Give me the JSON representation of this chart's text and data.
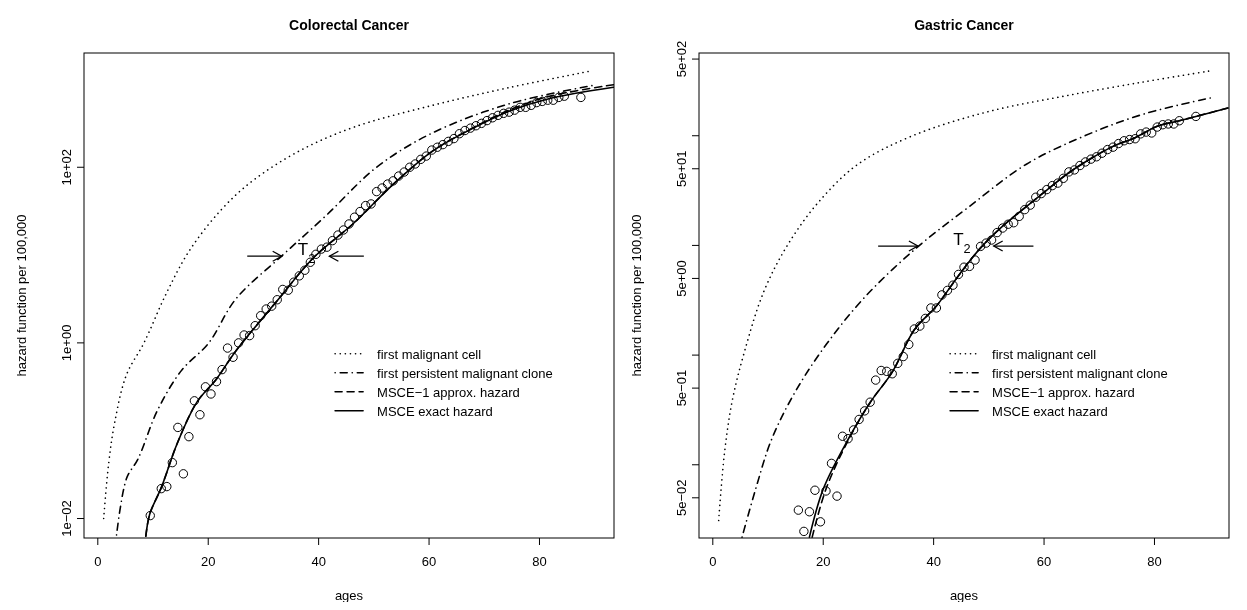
{
  "chart_data": [
    {
      "type": "line",
      "title": "Colorectal Cancer",
      "xlabel": "ages",
      "ylabel": "hazard function per 100,000",
      "log": "y",
      "legend": "right",
      "xlim": [
        -2.5,
        93.5
      ],
      "xticks": [
        0,
        20,
        40,
        60,
        80
      ],
      "ylim": [
        0.006,
        2000
      ],
      "yticks": [
        {
          "value": 0.01,
          "label": "1e−02"
        },
        {
          "value": 1,
          "label": "1e+00"
        },
        {
          "value": 100,
          "label": "1e+02"
        }
      ],
      "annotations": [
        "T$_{2}$"
      ],
      "series": [
        {
          "name": "first malignant cell",
          "line_style": "dotted",
          "color": "#000000",
          "x": [
            1.06,
            1.98,
            3.05,
            5.17,
            8.36,
            12.26,
            16.5,
            22.2,
            27.9,
            36.4,
            46.3,
            60.5,
            74.6,
            88.8
          ],
          "values": [
            0.01,
            0.043,
            0.123,
            0.43,
            1.0,
            3.5,
            11,
            32,
            69,
            152,
            285,
            505,
            810,
            1230
          ]
        },
        {
          "name": "first persistent malignant clone",
          "line_style": "dashdot",
          "color": "#000000",
          "x": [
            3.4,
            5.2,
            7.3,
            10.8,
            15.1,
            20.1,
            25.0,
            33.5,
            41.3,
            50.5,
            60.5,
            74.6,
            89.5
          ],
          "values": [
            0.0065,
            0.0285,
            0.048,
            0.17,
            0.48,
            1.0,
            3.16,
            10,
            28,
            100,
            244,
            530,
            850
          ]
        },
        {
          "name": "MSCE−1 approx. hazard",
          "line_style": "dashed",
          "color": "#000000",
          "x": [
            8.7,
            9.4,
            11.55,
            14.4,
            17.9,
            21.5,
            25.0,
            32.1,
            39.2,
            46.3,
            53.4,
            60.5,
            67.5,
            74.6,
            81.7,
            93.4
          ],
          "values": [
            0.0063,
            0.0112,
            0.0229,
            0.072,
            0.209,
            0.389,
            0.81,
            2.82,
            9.5,
            22.9,
            63,
            151,
            272,
            450,
            640,
            870
          ]
        },
        {
          "name": "MSCE exact hazard",
          "line_style": "solid",
          "color": "#000000",
          "x": [
            8.7,
            9.4,
            11.55,
            14.4,
            17.9,
            21.5,
            25.0,
            32.1,
            39.2,
            46.3,
            53.4,
            60.5,
            67.5,
            74.6,
            81.7,
            93.4
          ],
          "values": [
            0.0063,
            0.0112,
            0.0229,
            0.072,
            0.209,
            0.389,
            0.81,
            2.82,
            9.5,
            22.9,
            63,
            151,
            269,
            437,
            603,
            813
          ]
        },
        {
          "type": "scatter",
          "marker": "circle",
          "color": "#000000",
          "x": [
            9.5,
            11.5,
            12.5,
            13.5,
            14.5,
            15.5,
            16.5,
            17.5,
            18.5,
            19.5,
            20.5,
            21.5,
            22.5,
            23.5,
            24.5,
            25.5,
            26.5,
            27.5,
            28.5,
            29.5,
            30.5,
            31.5,
            32.5,
            33.5,
            34.5,
            35.5,
            36.5,
            37.5,
            38.5,
            39.5,
            40.5,
            41.5,
            42.5,
            43.5,
            44.5,
            45.5,
            46.5,
            47.5,
            48.5,
            49.5,
            50.5,
            51.5,
            52.5,
            53.5,
            54.5,
            55.5,
            56.5,
            57.5,
            58.5,
            59.5,
            60.5,
            61.5,
            62.5,
            63.5,
            64.5,
            65.5,
            66.5,
            67.5,
            68.5,
            69.5,
            70.5,
            71.5,
            72.5,
            73.5,
            74.5,
            75.5,
            76.5,
            77.5,
            78.5,
            79.5,
            80.5,
            81.5,
            82.5,
            83.5,
            84.5,
            87.5
          ],
          "values": [
            0.0108,
            0.0219,
            0.0231,
            0.0433,
            0.109,
            0.0323,
            0.0855,
            0.219,
            0.152,
            0.316,
            0.262,
            0.362,
            0.496,
            0.873,
            0.686,
            1.0,
            1.23,
            1.21,
            1.57,
            2.04,
            2.43,
            2.62,
            3.1,
            4.06,
            3.98,
            4.91,
            5.8,
            6.72,
            8.28,
            10.2,
            11.7,
            12.3,
            14.6,
            16.9,
            19.3,
            22.6,
            27.0,
            31.3,
            36.6,
            38.2,
            52.8,
            58.0,
            64.4,
            70.0,
            79.4,
            88.2,
            100,
            109,
            123,
            134,
            157,
            169,
            181,
            197,
            212,
            241,
            262,
            279,
            297,
            316,
            340,
            366,
            390,
            411,
            424,
            447,
            481,
            481,
            507,
            545,
            562,
            580,
            580,
            624,
            644,
            624
          ]
        }
      ]
    },
    {
      "type": "line",
      "title": "Gastric Cancer",
      "xlabel": "ages",
      "ylabel": "hazard function per 100,000",
      "log": "y",
      "legend": "right",
      "xlim": [
        -2.5,
        93.5
      ],
      "xticks": [
        0,
        20,
        40,
        60,
        80
      ],
      "ylim": [
        0.0215,
        568
      ],
      "yticks": [
        {
          "value": 0.05,
          "label": "5e−02"
        },
        {
          "value": 0.1,
          "label": null
        },
        {
          "value": 0.5,
          "label": "5e−01"
        },
        {
          "value": 1,
          "label": null
        },
        {
          "value": 5,
          "label": "5e+00"
        },
        {
          "value": 10,
          "label": null
        },
        {
          "value": 50,
          "label": "5e+01"
        },
        {
          "value": 100,
          "label": null
        },
        {
          "value": 500,
          "label": "5e+02"
        }
      ],
      "annotations": [
        "T$_{2}$"
      ],
      "series": [
        {
          "name": "first malignant cell",
          "line_style": "dotted",
          "color": "#000000",
          "x": [
            1.06,
            2.13,
            3.55,
            5.7,
            9.2,
            13.5,
            19.2,
            26.3,
            36.2,
            49.7,
            63.9,
            78.1,
            89.8
          ],
          "values": [
            0.031,
            0.13,
            0.39,
            1.06,
            3.76,
            10,
            25,
            55,
            100,
            165,
            231,
            310,
            388
          ]
        },
        {
          "name": "first persistent malignant clone",
          "line_style": "dashdot",
          "color": "#000000",
          "x": [
            5.3,
            7.8,
            10.6,
            14.9,
            20.6,
            27.7,
            36.9,
            46.1,
            56.8,
            67.4,
            78.1,
            90.1
          ],
          "values": [
            0.0219,
            0.061,
            0.168,
            0.46,
            1.26,
            3.45,
            9.5,
            21.9,
            55,
            100,
            158,
            221
          ]
        },
        {
          "name": "MSCE−1 approx. hazard",
          "line_style": "dashed",
          "color": "#000000",
          "x": [
            18.0,
            20.5,
            24.6,
            28.5,
            32.5,
            36.5,
            40.5,
            44.5,
            48.5,
            52.5,
            56.5,
            60.5,
            64.5,
            68.5,
            72.5,
            76.5,
            80.5,
            84.5,
            87.5,
            93.3
          ],
          "values": [
            0.0219,
            0.06,
            0.17,
            0.37,
            0.7,
            1.7,
            2.8,
            5.3,
            9.5,
            15,
            22,
            32,
            46,
            62,
            80,
            96,
            122,
            137,
            150,
            179
          ]
        },
        {
          "name": "MSCE exact hazard",
          "line_style": "solid",
          "color": "#000000",
          "x": [
            17.5,
            20.0,
            24.5,
            28.5,
            32.5,
            36.5,
            40.5,
            44.5,
            48.5,
            52.5,
            56.5,
            60.5,
            64.5,
            68.5,
            72.5,
            76.5,
            80.5,
            84.5,
            87.5,
            93.3
          ],
          "values": [
            0.0219,
            0.06,
            0.17,
            0.37,
            0.7,
            1.7,
            2.8,
            5.3,
            9.5,
            15,
            22,
            32,
            46,
            62,
            80,
            96,
            122,
            137,
            150,
            179
          ]
        },
        {
          "type": "scatter",
          "marker": "circle",
          "color": "#000000",
          "x": [
            15.5,
            16.5,
            17.5,
            18.5,
            19.5,
            20.5,
            21.5,
            22.5,
            23.5,
            24.5,
            25.5,
            26.5,
            27.5,
            28.5,
            29.5,
            30.5,
            31.5,
            32.5,
            33.5,
            34.5,
            35.5,
            36.5,
            37.5,
            38.5,
            39.5,
            40.5,
            41.5,
            42.5,
            43.5,
            44.5,
            45.5,
            46.5,
            47.5,
            48.5,
            49.5,
            50.5,
            51.5,
            52.5,
            53.5,
            54.5,
            55.5,
            56.5,
            57.5,
            58.5,
            59.5,
            60.5,
            61.5,
            62.5,
            63.5,
            64.5,
            65.5,
            66.5,
            67.5,
            68.5,
            69.5,
            70.5,
            71.5,
            72.5,
            73.5,
            74.5,
            75.5,
            76.5,
            77.5,
            78.5,
            79.5,
            80.5,
            81.5,
            82.5,
            83.5,
            84.5,
            87.5
          ],
          "values": [
            0.0386,
            0.0247,
            0.0373,
            0.0586,
            0.0302,
            0.0577,
            0.103,
            0.0518,
            0.182,
            0.173,
            0.208,
            0.259,
            0.31,
            0.372,
            0.592,
            0.724,
            0.711,
            0.676,
            0.841,
            0.97,
            1.25,
            1.73,
            1.84,
            2.16,
            2.69,
            2.69,
            3.54,
            3.89,
            4.34,
            5.44,
            6.33,
            6.44,
            7.36,
            9.8,
            10.5,
            11.2,
            13.1,
            14.4,
            15.6,
            16.1,
            18.4,
            21.2,
            23.3,
            27.5,
            29.7,
            32.3,
            35.1,
            37.0,
            40.9,
            46.8,
            48.8,
            53.5,
            57.7,
            61.2,
            64.3,
            69.3,
            74.8,
            78.7,
            84.9,
            90.0,
            92.3,
            93.9,
            104,
            108,
            106,
            120,
            126,
            128,
            128,
            137,
            150
          ]
        }
      ]
    }
  ]
}
